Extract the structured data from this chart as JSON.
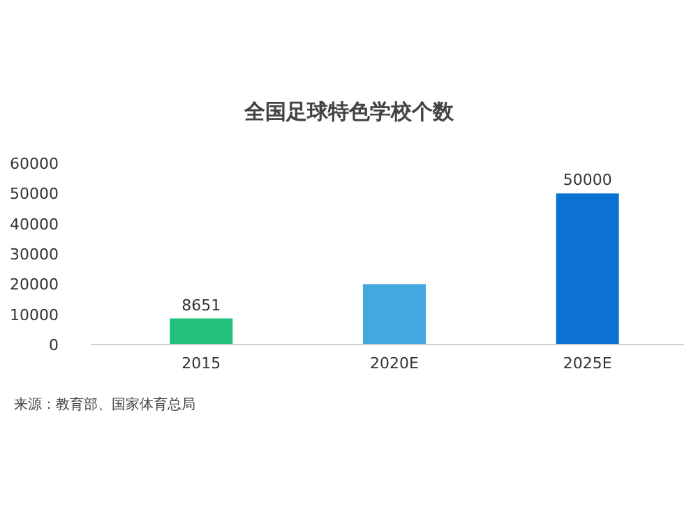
{
  "chart_data": {
    "type": "bar",
    "title": "全国足球特色学校个数",
    "categories": [
      "2015",
      "2020E",
      "2025E"
    ],
    "values": [
      8651,
      20000,
      50000
    ],
    "colors": [
      "#22c07a",
      "#43a8e0",
      "#0b72d3"
    ],
    "value_labels": [
      "8651",
      null,
      "50000"
    ],
    "ylim": [
      0,
      60000
    ],
    "yticks": [
      0,
      10000,
      20000,
      30000,
      40000,
      50000,
      60000
    ],
    "annotations": [
      "来源：教育部、国家体育总局"
    ]
  }
}
